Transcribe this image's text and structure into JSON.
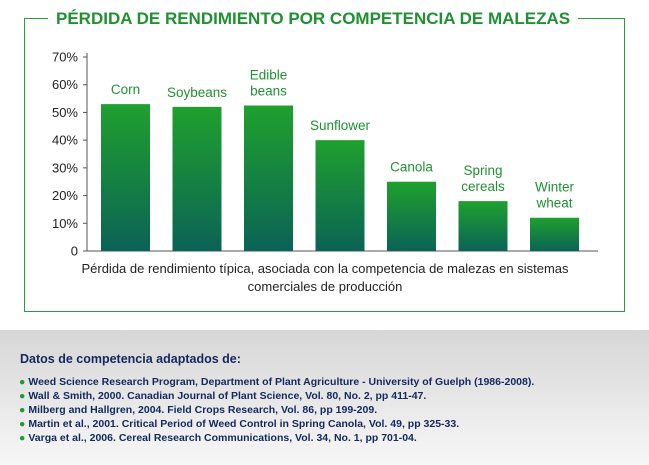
{
  "header": {
    "title": "PÉRDIDA DE RENDIMIENTO POR COMPETENCIA DE MALEZAS"
  },
  "colors": {
    "accent": "#1f9133",
    "bar_top": "#1fa02e",
    "bar_bottom": "#0b6355",
    "text_dark": "#13285e"
  },
  "chart_data": {
    "type": "bar",
    "title": "PÉRDIDA DE RENDIMIENTO POR COMPETENCIA DE MALEZAS",
    "categories": [
      [
        "Corn"
      ],
      [
        "Soybeans"
      ],
      [
        "Edible",
        "beans"
      ],
      [
        "Sunflower"
      ],
      [
        "Canola"
      ],
      [
        "Spring",
        "cereals"
      ],
      [
        "Winter",
        "wheat"
      ]
    ],
    "values": [
      53,
      52,
      52.5,
      40,
      25,
      18,
      12
    ],
    "unit": "%",
    "yticks": [
      "0",
      "10%",
      "20%",
      "30%",
      "40%",
      "50%",
      "60%",
      "70%"
    ],
    "ylim": [
      0,
      70
    ],
    "grid": false,
    "xlabel": "Pérdida de rendimiento típica, asociada con la competencia de malezas en sistemas comerciales de producción",
    "ylabel": ""
  },
  "sources": {
    "title": "Datos de competencia adaptados de:",
    "items": [
      "Weed Science Research Program, Department of Plant Agriculture - University of Guelph (1986-2008).",
      "Wall & Smith, 2000. Canadian Journal of Plant Science, Vol. 80, No. 2, pp 411-47.",
      "Milberg and Hallgren, 2004. Field Crops Research, Vol. 86, pp 199-209.",
      "Martin et al., 2001. Critical Period of Weed Control in Spring Canola, Vol. 49, pp 325-33.",
      "Varga et al., 2006. Cereal Research Communications, Vol. 34, No. 1, pp 701-04."
    ]
  }
}
